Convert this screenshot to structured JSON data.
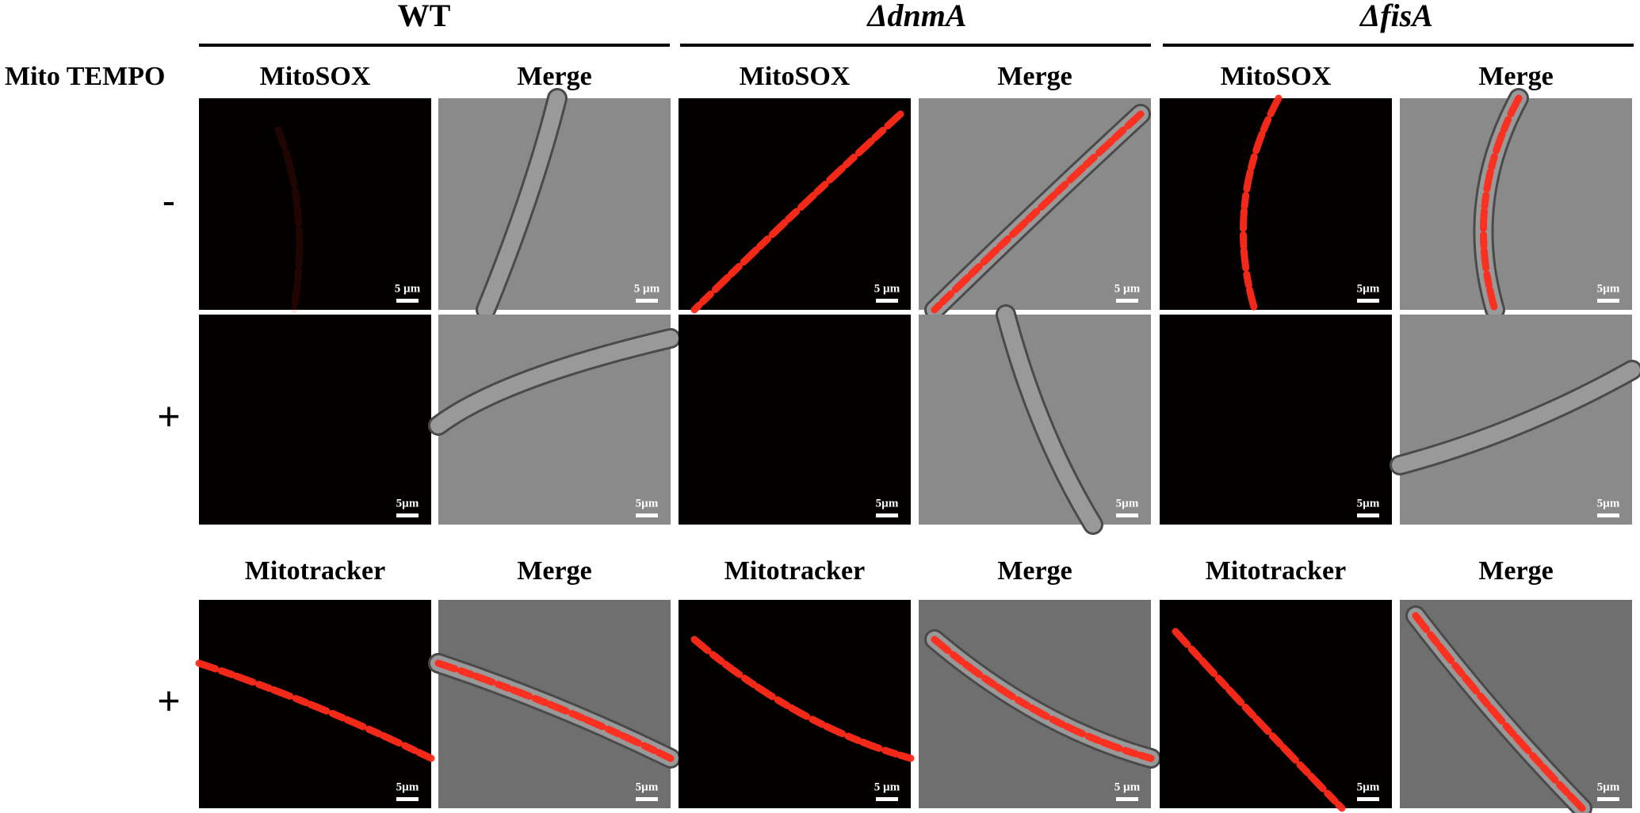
{
  "header": {
    "genotypes": [
      "WT",
      "ΔdnmA",
      "ΔfisA"
    ],
    "treatment_label": "Mito TEMPO"
  },
  "rows": [
    {
      "treatment": "-",
      "column_labels": [
        "MitoSOX",
        "Merge",
        "MitoSOX",
        "Merge",
        "MitoSOX",
        "Merge"
      ],
      "panels": [
        {
          "scale_bar": "5 µm"
        },
        {
          "scale_bar": "5 µm"
        },
        {
          "scale_bar": "5 µm"
        },
        {
          "scale_bar": "5 µm"
        },
        {
          "scale_bar": "5µm"
        },
        {
          "scale_bar": "5µm"
        }
      ]
    },
    {
      "treatment": "+",
      "panels": [
        {
          "scale_bar": "5µm"
        },
        {
          "scale_bar": "5µm"
        },
        {
          "scale_bar": "5µm"
        },
        {
          "scale_bar": "5µm"
        },
        {
          "scale_bar": "5µm"
        },
        {
          "scale_bar": "5µm"
        }
      ]
    },
    {
      "treatment": "+",
      "column_labels": [
        "Mitotracker",
        "Merge",
        "Mitotracker",
        "Merge",
        "Mitotracker",
        "Merge"
      ],
      "panels": [
        {
          "scale_bar": "5µm"
        },
        {
          "scale_bar": "5µm"
        },
        {
          "scale_bar": "5 µm"
        },
        {
          "scale_bar": "5 µm"
        },
        {
          "scale_bar": "5µm"
        },
        {
          "scale_bar": "5µm"
        }
      ]
    }
  ]
}
